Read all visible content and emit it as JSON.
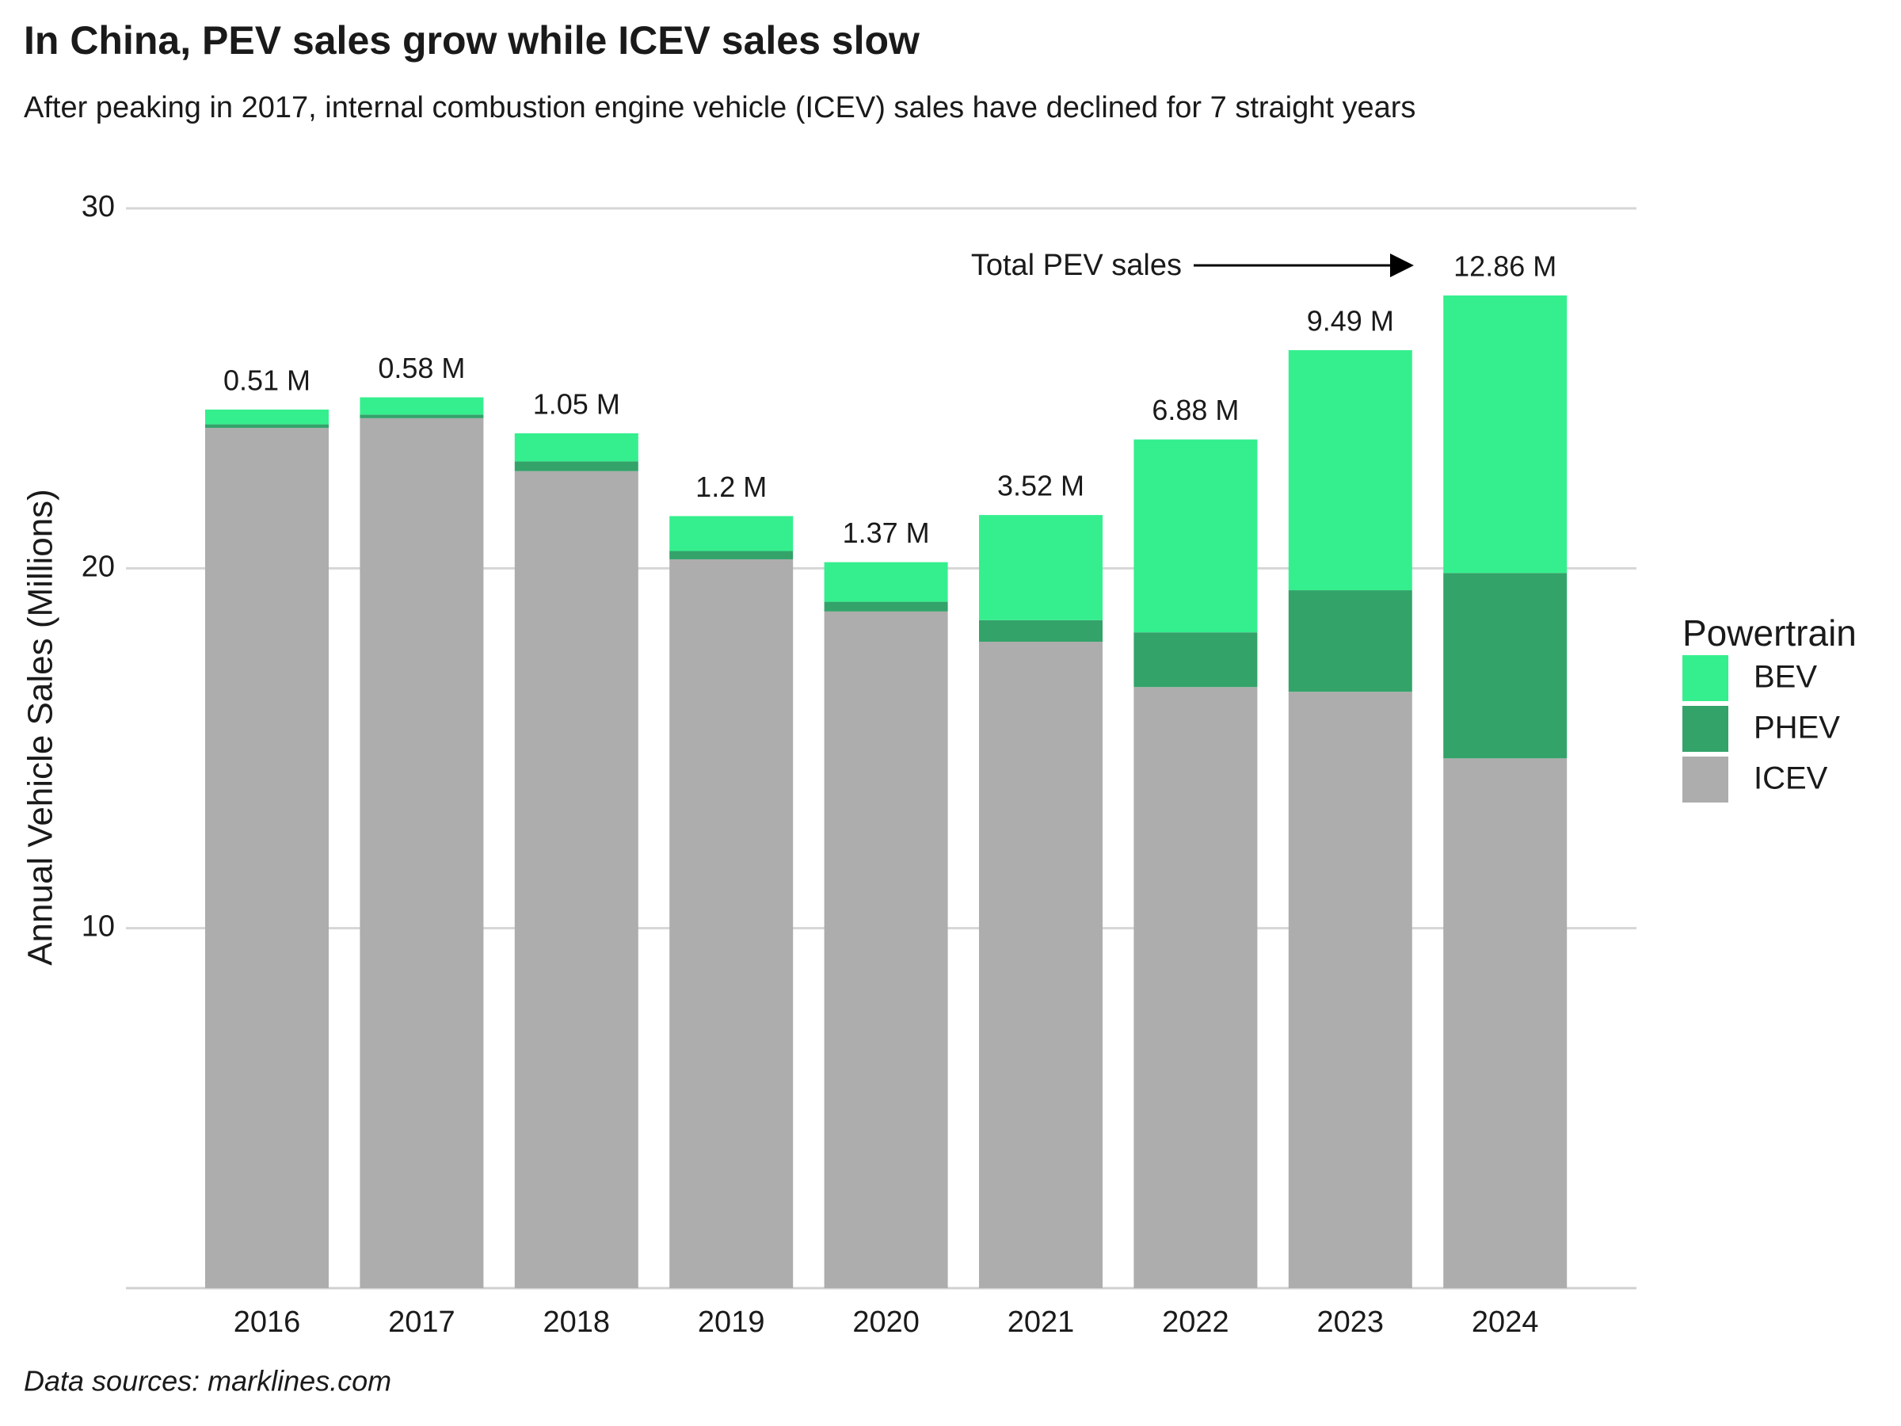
{
  "chart_data": {
    "type": "stacked_bar",
    "title": "In China, PEV sales grow while ICEV sales slow",
    "subtitle": "After peaking in 2017, internal combustion engine vehicle (ICEV) sales have declined for 7 straight years",
    "y_label": "Annual Vehicle Sales (Millions)",
    "source": "Data sources: marklines.com",
    "annotation": "Total PEV sales",
    "legend_title": "Powertrain",
    "categories": [
      "2016",
      "2017",
      "2018",
      "2019",
      "2020",
      "2021",
      "2022",
      "2023",
      "2024"
    ],
    "series": [
      {
        "name": "ICEV",
        "color": "#adadad",
        "values": [
          23.9,
          24.17,
          22.7,
          20.25,
          18.8,
          17.96,
          16.7,
          16.57,
          14.72
        ]
      },
      {
        "name": "PHEV",
        "color": "#33a36a",
        "values": [
          0.1,
          0.1,
          0.27,
          0.23,
          0.27,
          0.6,
          1.52,
          2.82,
          5.15
        ]
      },
      {
        "name": "BEV",
        "color": "#35ef8e",
        "values": [
          0.41,
          0.48,
          0.78,
          0.97,
          1.1,
          2.92,
          5.36,
          6.67,
          7.71
        ]
      }
    ],
    "totals": {
      "values": [
        0.51,
        0.58,
        1.05,
        1.2,
        1.37,
        3.52,
        6.88,
        9.49,
        12.86
      ],
      "value_labels": [
        "0.51 M",
        "0.58 M",
        "1.05 M",
        "1.2 M",
        "1.37 M",
        "3.52 M",
        "6.88 M",
        "9.49 M",
        "12.86 M"
      ]
    },
    "ylim": [
      0,
      30
    ],
    "yticks": [
      10,
      20,
      30
    ],
    "grid": true,
    "legend_position": "right"
  }
}
